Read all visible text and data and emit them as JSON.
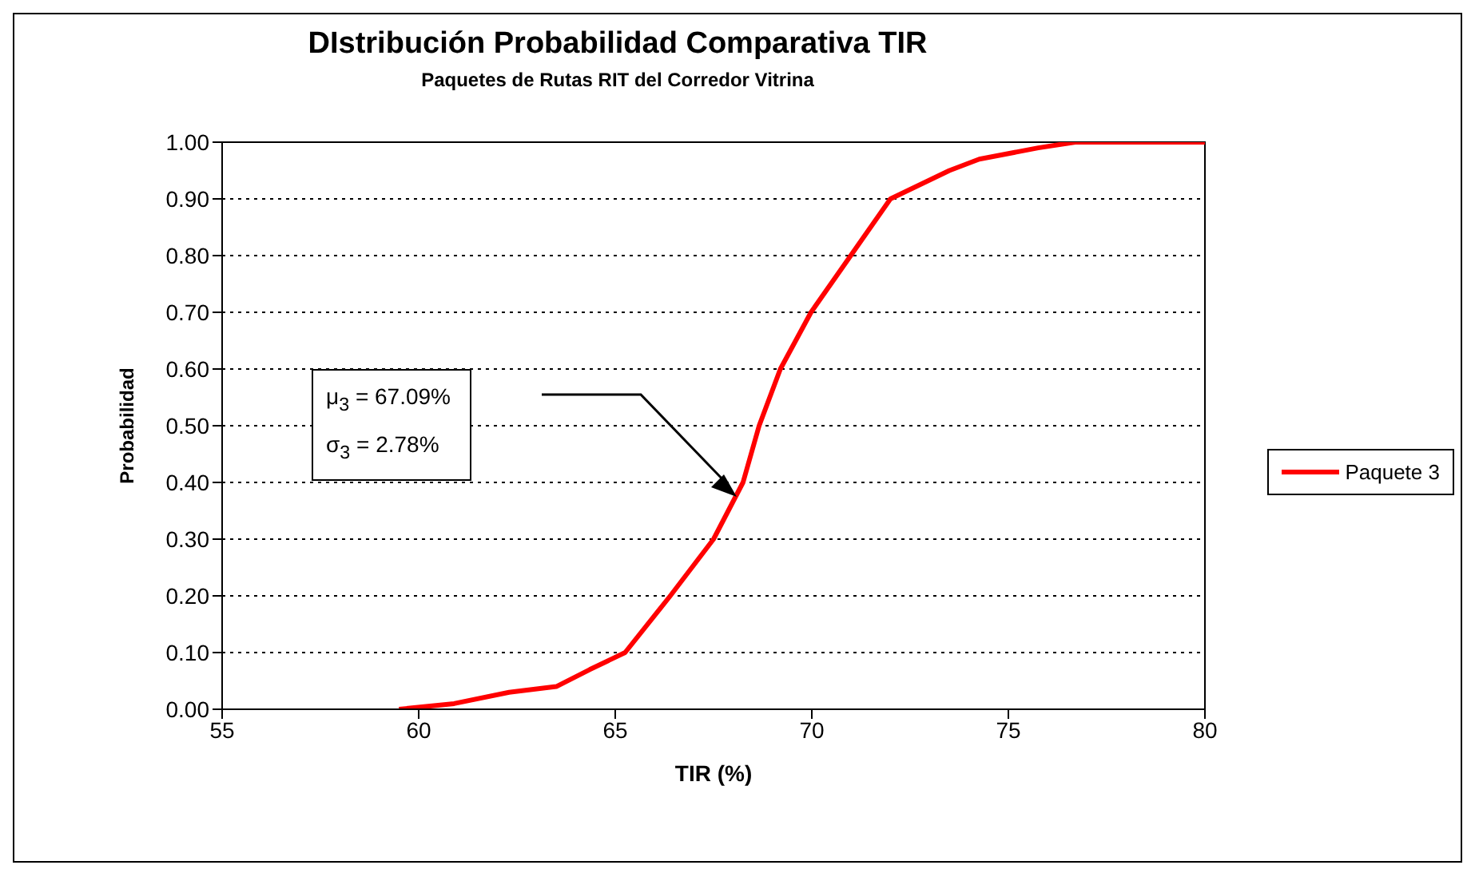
{
  "chart_data": {
    "type": "line",
    "title": "DIstribución Probabilidad Comparativa TIR",
    "subtitle": "Paquetes de Rutas RIT del Corredor Vitrina",
    "xlabel": "TIR (%)",
    "ylabel": "Probabilidad",
    "series": [
      {
        "name": "Paquete 3",
        "color": "#ff0000",
        "x": [
          59.5,
          60.9,
          62.3,
          63.5,
          64.35,
          65.25,
          66.4,
          67.5,
          68.25,
          68.66,
          69.2,
          69.98,
          70.99,
          72.0,
          73.5,
          74.26,
          75.76,
          76.7,
          80
        ],
        "values": [
          0,
          0.01,
          0.03,
          0.04,
          0.07,
          0.1,
          0.2,
          0.3,
          0.4,
          0.5,
          0.6,
          0.7,
          0.8,
          0.9,
          0.95,
          0.97,
          0.99,
          1.0,
          1.0
        ]
      }
    ],
    "xlim": [
      55,
      80
    ],
    "xticks": [
      55,
      60,
      65,
      70,
      75,
      80
    ],
    "ylim": [
      0,
      1
    ],
    "yticks": [
      {
        "value": 0,
        "label": "0.00"
      },
      {
        "value": 0.1,
        "label": "0.10"
      },
      {
        "value": 0.2,
        "label": "0.20"
      },
      {
        "value": 0.3,
        "label": "0.30"
      },
      {
        "value": 0.4,
        "label": "0.40"
      },
      {
        "value": 0.5,
        "label": "0.50"
      },
      {
        "value": 0.6,
        "label": "0.60"
      },
      {
        "value": 0.7,
        "label": "0.70"
      },
      {
        "value": 0.8,
        "label": "0.80"
      },
      {
        "value": 0.9,
        "label": "0.90"
      },
      {
        "value": 1,
        "label": "1.00"
      }
    ],
    "annotations": [
      "μ$_{3}$ = 67.09%",
      "σ$_{3}$ = 2.78%"
    ],
    "grid": "y",
    "legend": "right",
    "marker": "none",
    "line_style": "solid"
  }
}
